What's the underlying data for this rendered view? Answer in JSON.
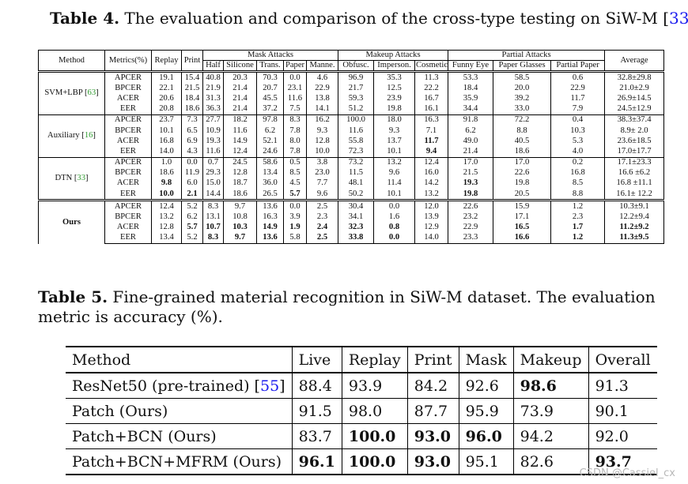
{
  "table4": {
    "caption_label": "Table 4.",
    "caption_text": " The evaluation and comparison of the cross-type testing on SiW-M [",
    "caption_ref": "33",
    "caption_end": "].",
    "headers": {
      "method": "Method",
      "metrics": "Metrics(%)",
      "replay": "Replay",
      "print": "Print",
      "mask_group": "Mask Attacks",
      "makeup_group": "Makeup Attacks",
      "partial_group": "Partial Attacks",
      "average": "Average",
      "sub": [
        "Half",
        "Silicone",
        "Trans.",
        "Paper",
        "Manne.",
        "Obfusc.",
        "Imperson.",
        "Cosmetic",
        "Funny Eye",
        "Paper Glasses",
        "Partial Paper"
      ]
    },
    "methods": [
      {
        "name": "SVM+LBP [",
        "ref": "63",
        "ref_end": "]",
        "rows": [
          {
            "metric": "APCER",
            "vals": [
              "19.1",
              "15.4",
              "40.8",
              "20.3",
              "70.3",
              "0.0",
              "4.6",
              "96.9",
              "35.3",
              "11.3",
              "53.3",
              "58.5",
              "0.6"
            ],
            "avg": "32.8±29.8",
            "bold": []
          },
          {
            "metric": "BPCER",
            "vals": [
              "22.1",
              "21.5",
              "21.9",
              "21.4",
              "20.7",
              "23.1",
              "22.9",
              "21.7",
              "12.5",
              "22.2",
              "18.4",
              "20.0",
              "22.9"
            ],
            "avg": "21.0±2.9",
            "bold": []
          },
          {
            "metric": "ACER",
            "vals": [
              "20.6",
              "18.4",
              "31.3",
              "21.4",
              "45.5",
              "11.6",
              "13.8",
              "59.3",
              "23.9",
              "16.7",
              "35.9",
              "39.2",
              "11.7"
            ],
            "avg": "26.9±14.5",
            "bold": []
          },
          {
            "metric": "EER",
            "vals": [
              "20.8",
              "18.6",
              "36.3",
              "21.4",
              "37.2",
              "7.5",
              "14.1",
              "51.2",
              "19.8",
              "16.1",
              "34.4",
              "33.0",
              "7.9"
            ],
            "avg": "24.5±12.9",
            "bold": []
          }
        ]
      },
      {
        "name": "Auxiliary [",
        "ref": "16",
        "ref_end": "]",
        "rows": [
          {
            "metric": "APCER",
            "vals": [
              "23.7",
              "7.3",
              "27.7",
              "18.2",
              "97.8",
              "8.3",
              "16.2",
              "100.0",
              "18.0",
              "16.3",
              "91.8",
              "72.2",
              "0.4"
            ],
            "avg": "38.3±37.4",
            "bold": []
          },
          {
            "metric": "BPCER",
            "vals": [
              "10.1",
              "6.5",
              "10.9",
              "11.6",
              "6.2",
              "7.8",
              "9.3",
              "11.6",
              "9.3",
              "7.1",
              "6.2",
              "8.8",
              "10.3"
            ],
            "avg": "8.9± 2.0",
            "bold": []
          },
          {
            "metric": "ACER",
            "vals": [
              "16.8",
              "6.9",
              "19.3",
              "14.9",
              "52.1",
              "8.0",
              "12.8",
              "55.8",
              "13.7",
              "11.7",
              "49.0",
              "40.5",
              "5.3"
            ],
            "avg": "23.6±18.5",
            "bold": [
              9
            ]
          },
          {
            "metric": "EER",
            "vals": [
              "14.0",
              "4.3",
              "11.6",
              "12.4",
              "24.6",
              "7.8",
              "10.0",
              "72.3",
              "10.1",
              "9.4",
              "21.4",
              "18.6",
              "4.0"
            ],
            "avg": "17.0±17.7",
            "bold": [
              9
            ]
          }
        ]
      },
      {
        "name": "DTN [",
        "ref": "33",
        "ref_end": "]",
        "rows": [
          {
            "metric": "APCER",
            "vals": [
              "1.0",
              "0.0",
              "0.7",
              "24.5",
              "58.6",
              "0.5",
              "3.8",
              "73.2",
              "13.2",
              "12.4",
              "17.0",
              "17.0",
              "0.2"
            ],
            "avg": "17.1±23.3",
            "bold": []
          },
          {
            "metric": "BPCER",
            "vals": [
              "18.6",
              "11.9",
              "29.3",
              "12.8",
              "13.4",
              "8.5",
              "23.0",
              "11.5",
              "9.6",
              "16.0",
              "21.5",
              "22.6",
              "16.8"
            ],
            "avg": "16.6 ±6.2",
            "bold": []
          },
          {
            "metric": "ACER",
            "vals": [
              "9.8",
              "6.0",
              "15.0",
              "18.7",
              "36.0",
              "4.5",
              "7.7",
              "48.1",
              "11.4",
              "14.2",
              "19.3",
              "19.8",
              "8.5"
            ],
            "avg": "16.8 ±11.1",
            "bold": [
              0,
              10
            ]
          },
          {
            "metric": "EER",
            "vals": [
              "10.0",
              "2.1",
              "14.4",
              "18.6",
              "26.5",
              "5.7",
              "9.6",
              "50.2",
              "10.1",
              "13.2",
              "19.8",
              "20.5",
              "8.8"
            ],
            "avg": "16.1± 12.2",
            "bold": [
              0,
              1,
              5,
              10
            ]
          }
        ]
      },
      {
        "name": "Ours",
        "ref": "",
        "ref_end": "",
        "bold_name": true,
        "rows": [
          {
            "metric": "APCER",
            "vals": [
              "12.4",
              "5.2",
              "8.3",
              "9.7",
              "13.6",
              "0.0",
              "2.5",
              "30.4",
              "0.0",
              "12.0",
              "22.6",
              "15.9",
              "1.2"
            ],
            "avg": "10.3±9.1",
            "bold": []
          },
          {
            "metric": "BPCER",
            "vals": [
              "13.2",
              "6.2",
              "13.1",
              "10.8",
              "16.3",
              "3.9",
              "2.3",
              "34.1",
              "1.6",
              "13.9",
              "23.2",
              "17.1",
              "2.3"
            ],
            "avg": "12.2±9.4",
            "bold": []
          },
          {
            "metric": "ACER",
            "vals": [
              "12.8",
              "5.7",
              "10.7",
              "10.3",
              "14.9",
              "1.9",
              "2.4",
              "32.3",
              "0.8",
              "12.9",
              "22.9",
              "16.5",
              "1.7"
            ],
            "avg": "11.2±9.2",
            "bold": [
              1,
              2,
              3,
              4,
              5,
              6,
              7,
              8,
              11,
              12,
              13
            ]
          },
          {
            "metric": "EER",
            "vals": [
              "13.4",
              "5.2",
              "8.3",
              "9.7",
              "13.6",
              "5.8",
              "2.5",
              "33.8",
              "0.0",
              "14.0",
              "23.3",
              "16.6",
              "1.2"
            ],
            "avg": "11.3±9.5",
            "bold": [
              2,
              3,
              4,
              6,
              7,
              8,
              11,
              12,
              13
            ]
          }
        ]
      }
    ]
  },
  "table5": {
    "caption_label": "Table 5.",
    "caption_text": " Fine-grained material recognition in SiW-M dataset. The evaluation metric is accuracy (%).",
    "headers": [
      "Method",
      "Live",
      "Replay",
      "Print",
      "Mask",
      "Makeup",
      "Overall"
    ],
    "rows": [
      {
        "method": "ResNet50 (pre-trained) [",
        "ref": "55",
        "ref_end": "]",
        "vals": [
          "88.4",
          "93.9",
          "84.2",
          "92.6",
          "98.6",
          "91.3"
        ],
        "bold": [
          4
        ]
      },
      {
        "method": "Patch (Ours)",
        "ref": "",
        "ref_end": "",
        "vals": [
          "91.5",
          "98.0",
          "87.7",
          "95.9",
          "73.9",
          "90.1"
        ],
        "bold": []
      },
      {
        "method": "Patch+BCN (Ours)",
        "ref": "",
        "ref_end": "",
        "vals": [
          "83.7",
          "100.0",
          "93.0",
          "96.0",
          "94.2",
          "92.0"
        ],
        "bold": [
          1,
          2,
          3
        ]
      },
      {
        "method": "Patch+BCN+MFRM (Ours)",
        "ref": "",
        "ref_end": "",
        "vals": [
          "96.1",
          "100.0",
          "93.0",
          "95.1",
          "82.6",
          "93.7"
        ],
        "bold": [
          0,
          1,
          2,
          5
        ]
      }
    ]
  },
  "watermark": "CSDN @Cassiel_cx"
}
